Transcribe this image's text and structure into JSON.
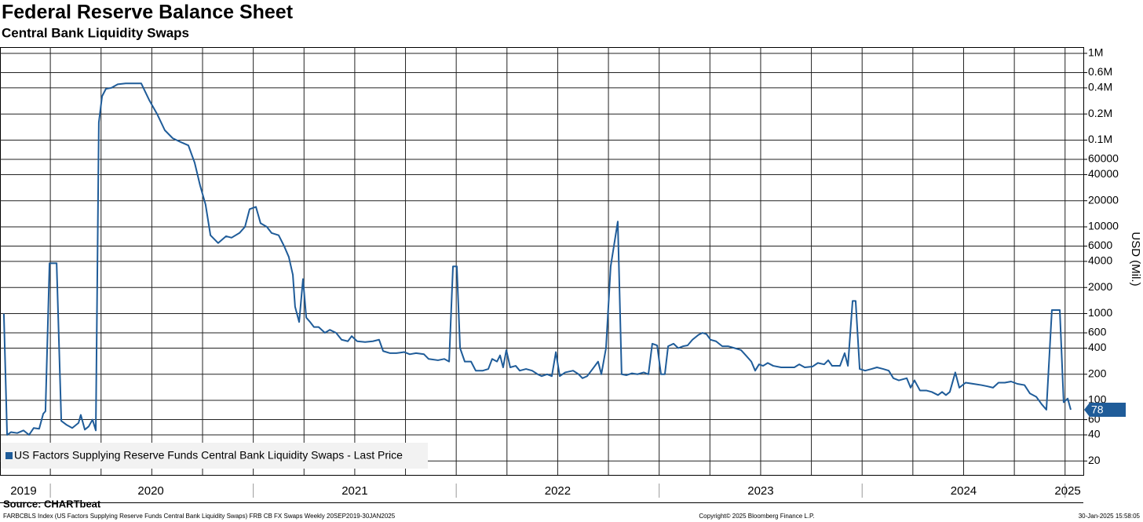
{
  "chart_data": {
    "type": "line",
    "title": "Federal Reserve Balance Sheet",
    "subtitle": "Central Bank Liquidity Swaps",
    "ylabel": "USD (Mil.)",
    "yscale": "log",
    "grid": true,
    "legend_position": "lower left",
    "source": "Source: CHARTbeat",
    "footer_left": "FARBCBLS Index (US Factors Supplying Reserve Funds Central Bank Liquidity Swaps) FRB CB FX Swaps  Weekly 20SEP2019-30JAN2025",
    "footer_center": "Copyright© 2025 Bloomberg Finance L.P.",
    "footer_right": "30-Jan-2025 15:58:05",
    "xlim": [
      2019.752,
      2025.09
    ],
    "xticks": [
      {
        "value": 2019.868,
        "label": "2019"
      },
      {
        "value": 2020.495,
        "label": "2020"
      },
      {
        "value": 2021.5,
        "label": "2021"
      },
      {
        "value": 2022.5,
        "label": "2022"
      },
      {
        "value": 2023.5,
        "label": "2023"
      },
      {
        "value": 2024.5,
        "label": "2024"
      },
      {
        "value": 2025.013,
        "label": "2025"
      }
    ],
    "xgrid": [
      2020,
      2020.25,
      2020.5,
      2020.75,
      2021,
      2021.25,
      2021.5,
      2021.75,
      2022,
      2022.25,
      2022.5,
      2022.75,
      2023,
      2023.25,
      2023.5,
      2023.75,
      2024,
      2024.25,
      2024.5,
      2024.75,
      2025
    ],
    "ylim": [
      16,
      1180000
    ],
    "yticks": [
      {
        "value": 1000000,
        "label": "1M"
      },
      {
        "value": 600000,
        "label": "0.6M"
      },
      {
        "value": 400000,
        "label": "0.4M"
      },
      {
        "value": 200000,
        "label": "0.2M"
      },
      {
        "value": 100000,
        "label": "0.1M"
      },
      60000,
      40000,
      20000,
      10000,
      6000,
      4000,
      2000,
      1000,
      600,
      400,
      200,
      100,
      60,
      40,
      20
    ],
    "x": [
      2019.771,
      2019.787,
      2019.806,
      2019.837,
      2019.868,
      2019.895,
      2019.918,
      2019.945,
      2019.965,
      2019.976,
      2019.996,
      2020.031,
      2020.054,
      2020.081,
      2020.108,
      2020.139,
      2020.15,
      2020.17,
      2020.189,
      2020.208,
      2020.224,
      2020.239,
      2020.255,
      2020.274,
      2020.301,
      2020.332,
      2020.371,
      2020.417,
      2020.448,
      2020.487,
      2020.526,
      2020.564,
      2020.603,
      2020.642,
      2020.68,
      2020.711,
      2020.738,
      2020.765,
      2020.789,
      2020.827,
      2020.866,
      2020.893,
      2020.932,
      2020.959,
      2020.982,
      2021.013,
      2021.036,
      2021.067,
      2021.09,
      2021.125,
      2021.152,
      2021.175,
      2021.195,
      2021.206,
      2021.226,
      2021.245,
      2021.261,
      2021.28,
      2021.299,
      2021.322,
      2021.353,
      2021.377,
      2021.408,
      2021.435,
      2021.466,
      2021.485,
      2021.512,
      2021.551,
      2021.589,
      2021.62,
      2021.64,
      2021.674,
      2021.705,
      2021.744,
      2021.771,
      2021.802,
      2021.841,
      2021.864,
      2021.91,
      2021.941,
      2021.965,
      2021.984,
      2022.003,
      2022.019,
      2022.042,
      2022.073,
      2022.096,
      2022.131,
      2022.158,
      2022.177,
      2022.201,
      2022.216,
      2022.231,
      2022.247,
      2022.266,
      2022.293,
      2022.313,
      2022.344,
      2022.374,
      2022.401,
      2022.421,
      2022.448,
      2022.471,
      2022.491,
      2022.51,
      2022.537,
      2022.576,
      2022.603,
      2022.622,
      2022.645,
      2022.672,
      2022.699,
      2022.715,
      2022.738,
      2022.761,
      2022.796,
      2022.815,
      2022.839,
      2022.866,
      2022.893,
      2022.924,
      2022.947,
      2022.966,
      2022.99,
      2023.009,
      2023.028,
      2023.044,
      2023.071,
      2023.094,
      2023.117,
      2023.14,
      2023.164,
      2023.194,
      2023.214,
      2023.233,
      2023.253,
      2023.28,
      2023.311,
      2023.341,
      2023.372,
      2023.403,
      2023.427,
      2023.454,
      2023.473,
      2023.492,
      2023.512,
      2023.535,
      2023.562,
      2023.601,
      2023.639,
      2023.666,
      2023.69,
      2023.717,
      2023.755,
      2023.782,
      2023.813,
      2023.833,
      2023.852,
      2023.891,
      2023.914,
      2023.93,
      2023.953,
      2023.968,
      2023.988,
      2024.015,
      2024.046,
      2024.073,
      2024.104,
      2024.131,
      2024.154,
      2024.181,
      2024.22,
      2024.239,
      2024.258,
      2024.285,
      2024.316,
      2024.343,
      2024.374,
      2024.394,
      2024.413,
      2024.432,
      2024.459,
      2024.479,
      2024.51,
      2024.548,
      2024.587,
      2024.618,
      2024.645,
      2024.672,
      2024.703,
      2024.734,
      2024.765,
      2024.8,
      2024.827,
      2024.858,
      2024.885,
      2024.908,
      2024.935,
      2024.974,
      2024.993,
      2025.013,
      2025.028
    ],
    "series": [
      {
        "name": "US Factors Supplying Reserve Funds Central Bank Liquidity Swaps - Last Price",
        "color": "#1f5c99",
        "values": [
          1000,
          40,
          43,
          42,
          45,
          40,
          48,
          47,
          70,
          75,
          3800,
          3800,
          58,
          52,
          48,
          55,
          68,
          46,
          50,
          60,
          45,
          160000,
          320000,
          390000,
          400000,
          440000,
          450000,
          450000,
          450000,
          290000,
          200000,
          130000,
          105000,
          95000,
          87000,
          55000,
          30000,
          18000,
          8000,
          6500,
          7800,
          7500,
          8500,
          10000,
          16000,
          17000,
          11000,
          10000,
          8500,
          8000,
          6000,
          4500,
          2800,
          1200,
          800,
          2500,
          900,
          800,
          700,
          700,
          600,
          650,
          600,
          500,
          480,
          550,
          480,
          470,
          480,
          500,
          370,
          350,
          350,
          360,
          340,
          350,
          340,
          300,
          290,
          300,
          280,
          3500,
          3500,
          400,
          280,
          280,
          220,
          220,
          230,
          300,
          280,
          330,
          240,
          380,
          240,
          250,
          220,
          230,
          220,
          200,
          190,
          200,
          190,
          360,
          190,
          210,
          220,
          200,
          180,
          190,
          230,
          280,
          200,
          400,
          3500,
          11500,
          200,
          195,
          205,
          200,
          210,
          200,
          450,
          430,
          200,
          200,
          420,
          450,
          400,
          420,
          430,
          500,
          570,
          600,
          580,
          500,
          480,
          420,
          420,
          400,
          380,
          330,
          280,
          220,
          260,
          250,
          270,
          250,
          240,
          240,
          240,
          260,
          240,
          245,
          270,
          260,
          290,
          250,
          250,
          350,
          250,
          1400,
          1400,
          230,
          220,
          230,
          240,
          230,
          220,
          180,
          170,
          180,
          140,
          170,
          130,
          130,
          125,
          115,
          125,
          115,
          125,
          210,
          140,
          160,
          155,
          150,
          145,
          140,
          160,
          160,
          165,
          155,
          150,
          120,
          110,
          90,
          78,
          1100,
          1100,
          95,
          105,
          78
        ]
      }
    ]
  }
}
